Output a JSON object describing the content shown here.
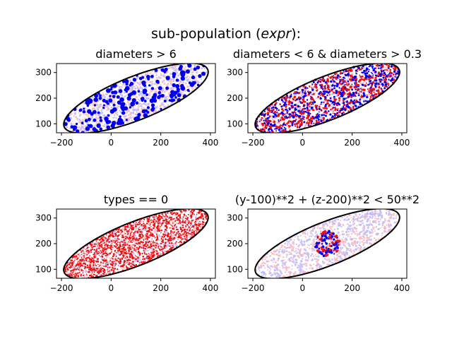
{
  "figure": {
    "suptitle_prefix": "sub-population (",
    "suptitle_expr": "expr",
    "suptitle_suffix": "):"
  },
  "chart_data": [
    {
      "type": "scatter",
      "title": "diameters > 6",
      "xlim": [
        -220,
        420
      ],
      "ylim": [
        65,
        335
      ],
      "xticks": [
        -200,
        0,
        200,
        400
      ],
      "yticks": [
        100,
        200,
        300
      ],
      "ellipse": {
        "cx": 100,
        "cy": 200,
        "rx": 310,
        "ry": 85,
        "angle_deg": 21
      },
      "highlight": "large-diameter subset (blue)",
      "highlight_colors": [
        "#0000ee"
      ],
      "background_colors": [
        "#ffbbbb",
        "#bbbbff"
      ],
      "highlight_points": 210,
      "background_points": 1100,
      "highlight_marker_radius": 2.6,
      "region": "ellipse"
    },
    {
      "type": "scatter",
      "title": "diameters < 6 & diameters > 0.3",
      "xlim": [
        -220,
        420
      ],
      "ylim": [
        65,
        335
      ],
      "xticks": [
        -200,
        0,
        200,
        400
      ],
      "yticks": [
        100,
        200,
        300
      ],
      "ellipse": {
        "cx": 100,
        "cy": 200,
        "rx": 310,
        "ry": 85,
        "angle_deg": 21
      },
      "highlight_colors": [
        "#0000ee",
        "#ee1111"
      ],
      "background_colors": [
        "#ffbbbb",
        "#bbbbff"
      ],
      "highlight_points": 1300,
      "background_points": 600,
      "highlight_marker_radius": 1.4,
      "region": "ellipse"
    },
    {
      "type": "scatter",
      "title": "types == 0",
      "xlim": [
        -220,
        420
      ],
      "ylim": [
        65,
        335
      ],
      "xticks": [
        -200,
        0,
        200,
        400
      ],
      "yticks": [
        100,
        200,
        300
      ],
      "ellipse": {
        "cx": 100,
        "cy": 200,
        "rx": 310,
        "ry": 85,
        "angle_deg": 21
      },
      "highlight_colors": [
        "#ee1111"
      ],
      "background_colors": [
        "#bbbbff",
        "#ffbbbb"
      ],
      "highlight_points": 1500,
      "background_points": 900,
      "highlight_marker_radius": 1.1,
      "region": "ellipse"
    },
    {
      "type": "scatter",
      "title": "(y-100)**2 + (z-200)**2 < 50**2",
      "xlim": [
        -220,
        420
      ],
      "ylim": [
        65,
        335
      ],
      "xticks": [
        -200,
        0,
        200,
        400
      ],
      "yticks": [
        100,
        200,
        300
      ],
      "ellipse": {
        "cx": 100,
        "cy": 200,
        "rx": 310,
        "ry": 85,
        "angle_deg": 21
      },
      "highlight_colors": [
        "#0000ee",
        "#ee1111"
      ],
      "background_colors": [
        "#bbbbff",
        "#ffbbbb"
      ],
      "highlight_points": 130,
      "background_points": 1100,
      "highlight_marker_radius": 1.6,
      "region": "circle",
      "circle": {
        "cx": 100,
        "cy": 200,
        "r": 50
      }
    }
  ]
}
